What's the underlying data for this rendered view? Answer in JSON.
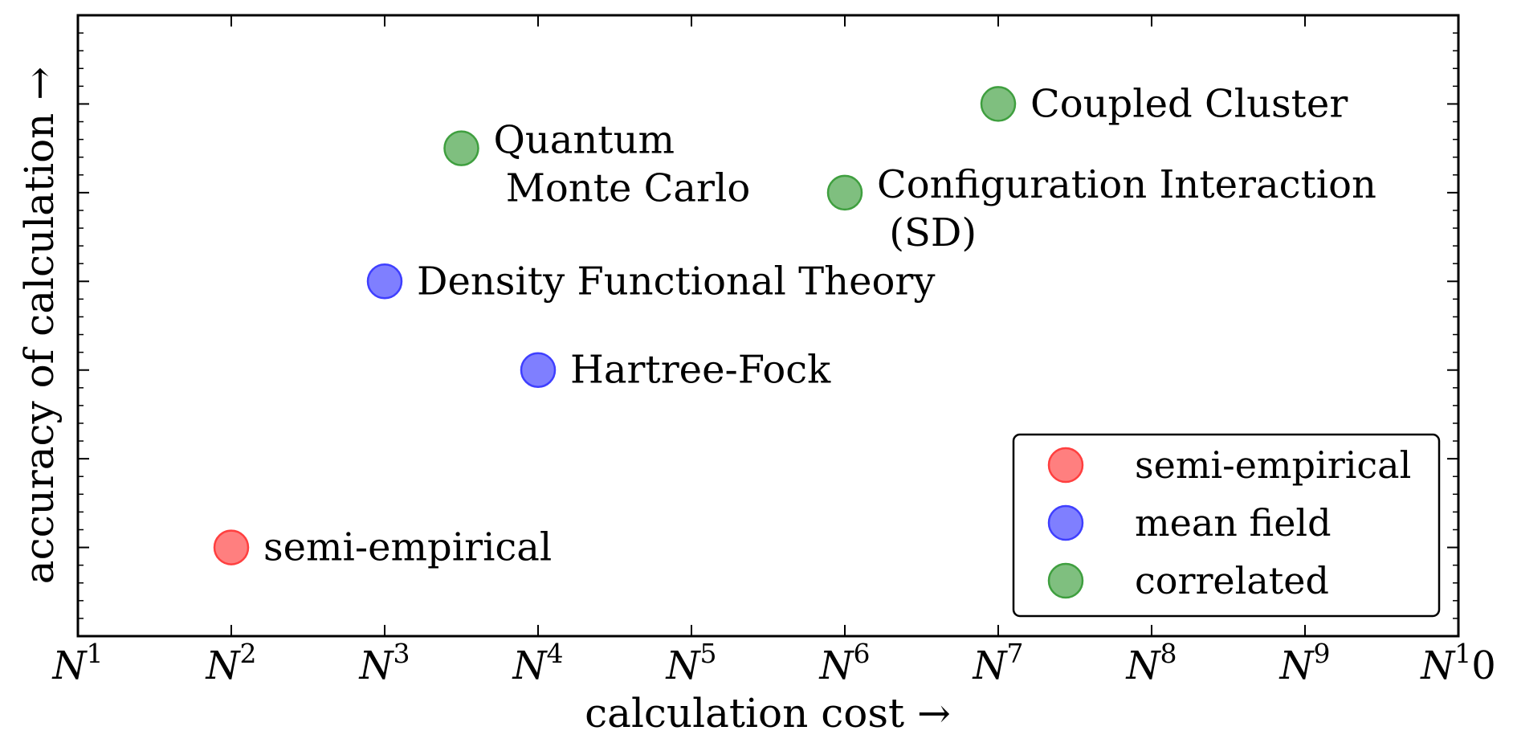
{
  "chart_data": {
    "type": "scatter",
    "xlabel": "calculation cost  →",
    "ylabel": "accuracy of calculation  →",
    "xlim": [
      1,
      10
    ],
    "ylim": [
      0,
      7
    ],
    "x_ticks": [
      {
        "value": 1,
        "base": "N",
        "exp": "1"
      },
      {
        "value": 2,
        "base": "N",
        "exp": "2"
      },
      {
        "value": 3,
        "base": "N",
        "exp": "3"
      },
      {
        "value": 4,
        "base": "N",
        "exp": "4"
      },
      {
        "value": 5,
        "base": "N",
        "exp": "5"
      },
      {
        "value": 6,
        "base": "N",
        "exp": "6"
      },
      {
        "value": 7,
        "base": "N",
        "exp": "7"
      },
      {
        "value": 8,
        "base": "N",
        "exp": "8"
      },
      {
        "value": 9,
        "base": "N",
        "exp": "9"
      },
      {
        "value": 10,
        "base": "N",
        "exp": "1",
        "suffix": "0"
      }
    ],
    "grid": false,
    "legend_position": "bottom-right",
    "categories": [
      {
        "name": "semi-empirical",
        "color": "#ff7f7f"
      },
      {
        "name": "mean field",
        "color": "#7f7fff"
      },
      {
        "name": "correlated",
        "color": "#7fbf7f"
      }
    ],
    "points": [
      {
        "x": 2,
        "y": 1,
        "category": "semi-empirical",
        "label": [
          "semi-empirical"
        ]
      },
      {
        "x": 3,
        "y": 4,
        "category": "mean field",
        "label": [
          "Density Functional Theory"
        ]
      },
      {
        "x": 4,
        "y": 3,
        "category": "mean field",
        "label": [
          "Hartree-Fock"
        ]
      },
      {
        "x": 3.5,
        "y": 5.5,
        "category": "correlated",
        "label": [
          "Quantum",
          " Monte Carlo"
        ]
      },
      {
        "x": 6,
        "y": 5,
        "category": "correlated",
        "label": [
          "Configuration Interaction",
          " (SD)"
        ]
      },
      {
        "x": 7,
        "y": 6,
        "category": "correlated",
        "label": [
          "Coupled Cluster"
        ]
      }
    ]
  },
  "colors": {
    "semi_empirical_edge": "#ff3f3f",
    "mean_field_edge": "#3f3fff",
    "correlated_edge": "#3f9f3f"
  }
}
